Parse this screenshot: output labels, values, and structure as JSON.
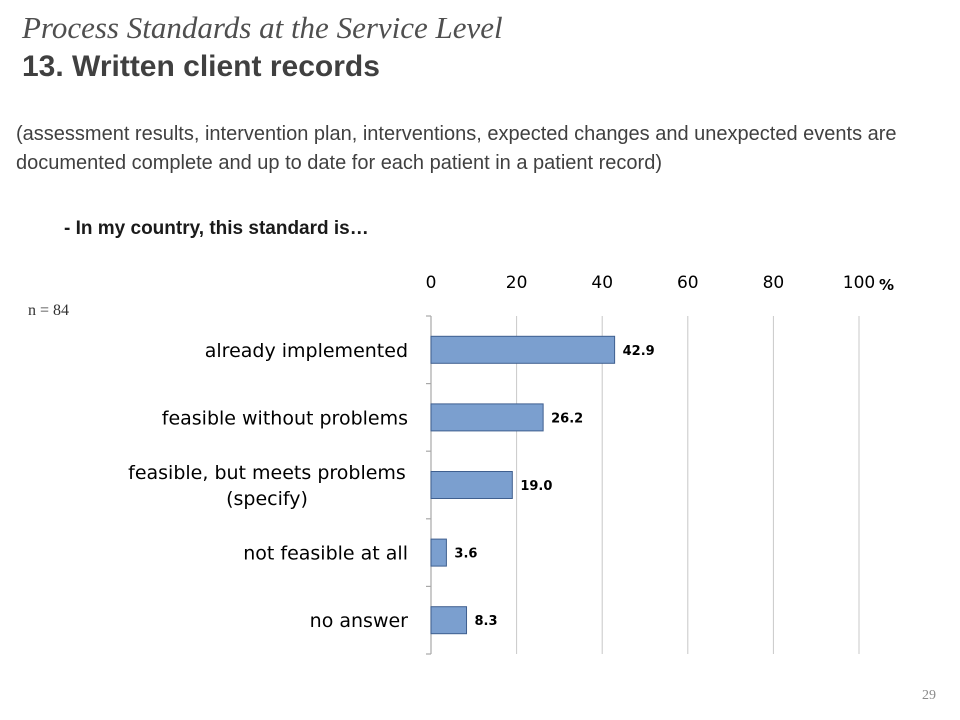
{
  "slide": {
    "title": "Process Standards at the Service Level",
    "subtitle": "13. Written client records",
    "description": "(assessment results, intervention plan, interventions, expected changes and unexpected events are documented complete and up to date for each patient in a patient record)",
    "question": "- In my country, this standard is…",
    "sample_size": "n = 84",
    "page_number": "29"
  },
  "chart_data": {
    "type": "bar",
    "orientation": "horizontal",
    "title": "",
    "xlabel": "",
    "ylabel": "",
    "unit": "%",
    "xlim": [
      0,
      100
    ],
    "xticks": [
      0,
      20,
      40,
      60,
      80,
      100
    ],
    "axis_position": "top",
    "grid": true,
    "categories": [
      [
        "already implemented"
      ],
      [
        "feasible without problems"
      ],
      [
        "feasible, but meets problems",
        "(specify)"
      ],
      [
        "not feasible at all"
      ],
      [
        "no answer"
      ]
    ],
    "values": [
      42.9,
      26.2,
      19.0,
      3.6,
      8.3
    ],
    "value_labels": [
      "42.9",
      "26.2",
      "19.0",
      "3.6",
      "8.3"
    ],
    "colors": {
      "bar": "#7b9fcf",
      "bar_border": "#3f5f8f",
      "grid": "#c8c8c8",
      "axis": "#a8a8a8"
    }
  }
}
